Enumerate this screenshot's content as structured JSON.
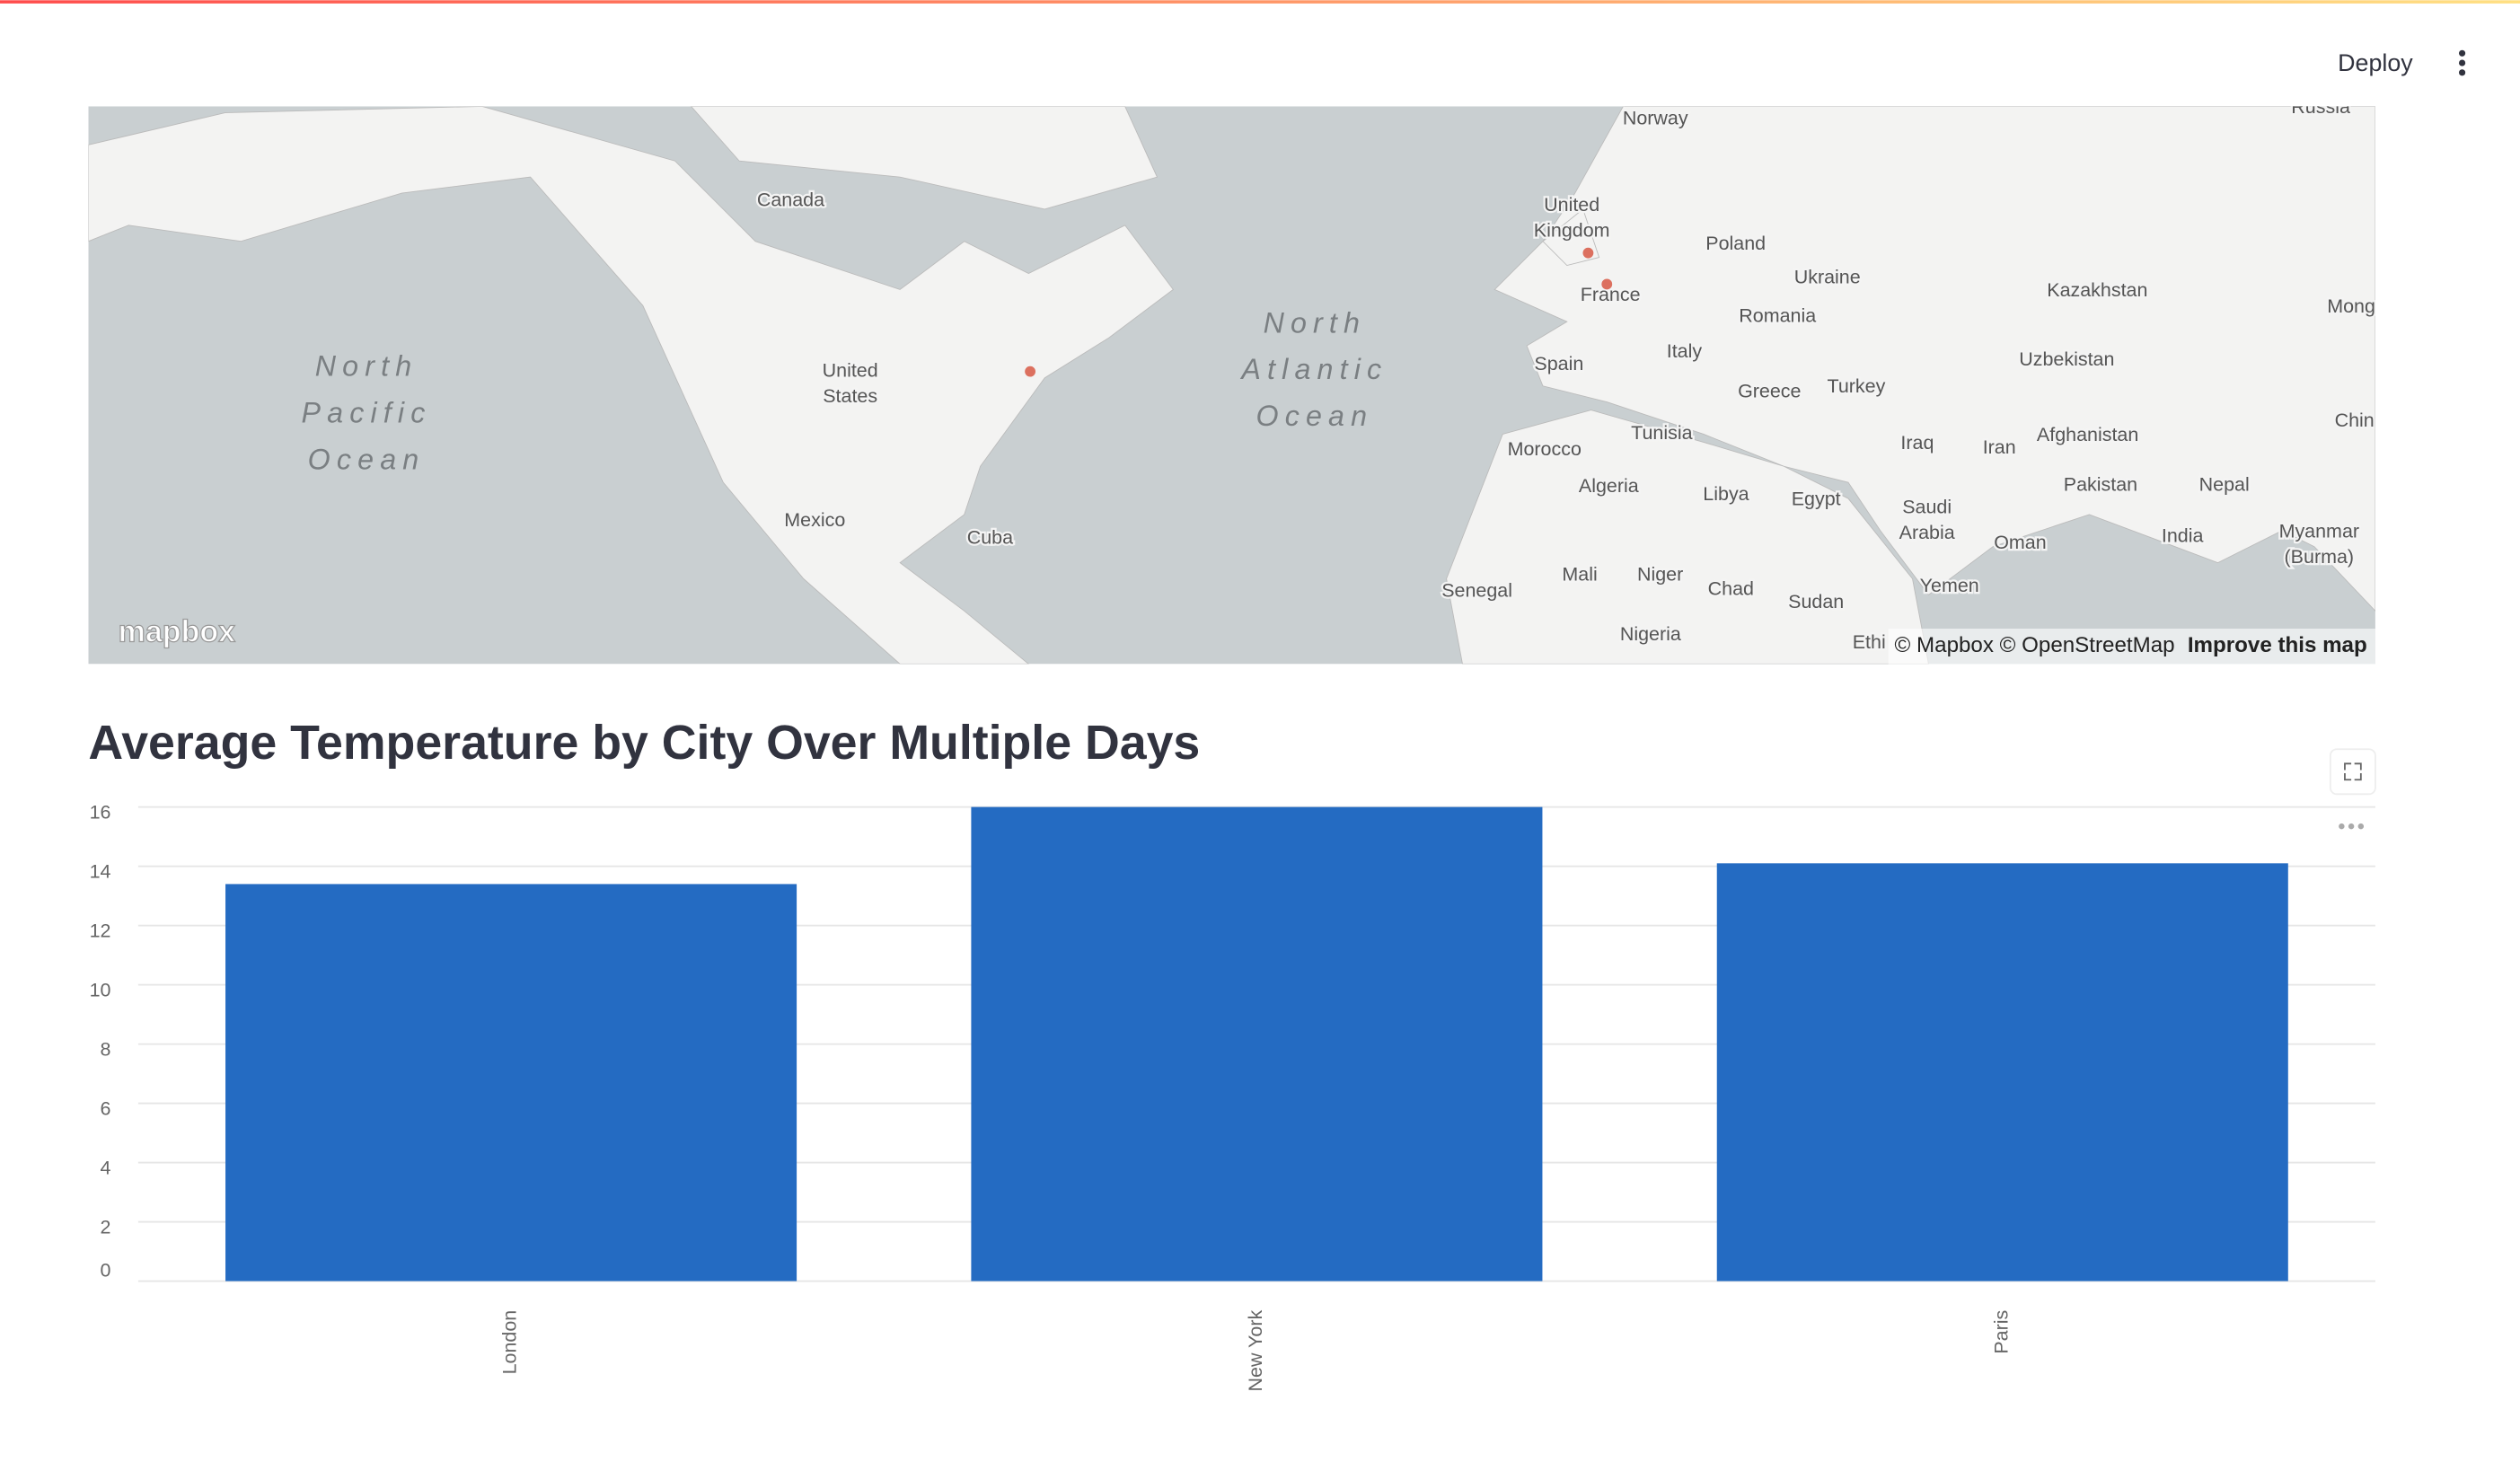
{
  "header": {
    "deploy": "Deploy"
  },
  "map": {
    "labels": [
      [
        "Norway"
      ],
      [
        "Russia"
      ],
      [
        "Canada"
      ],
      [
        "United",
        "Kingdom"
      ],
      [
        "Poland"
      ],
      [
        "Ukraine"
      ],
      [
        "France"
      ],
      [
        "Kazakhstan"
      ],
      [
        "Mong"
      ],
      [
        "Romania"
      ],
      [
        "North",
        "Pacific",
        "Ocean"
      ],
      [
        "North",
        "Atlantic",
        "Ocean"
      ],
      [
        "United",
        "States"
      ],
      [
        "Spain"
      ],
      [
        "Italy"
      ],
      [
        "Uzbekistan"
      ],
      [
        "Turkey"
      ],
      [
        "Greece"
      ],
      [
        "Chin"
      ],
      [
        "Tunisia"
      ],
      [
        "Iraq"
      ],
      [
        "Iran"
      ],
      [
        "Afghanistan"
      ],
      [
        "Morocco"
      ],
      [
        "Algeria"
      ],
      [
        "Libya"
      ],
      [
        "Egypt"
      ],
      [
        "Pakistan"
      ],
      [
        "Nepal"
      ],
      [
        "Mexico"
      ],
      [
        "Saudi",
        "Arabia"
      ],
      [
        "India"
      ],
      [
        "Oman"
      ],
      [
        "Myanmar",
        "(Burma)"
      ],
      [
        "Cuba"
      ],
      [
        "Mali"
      ],
      [
        "Niger"
      ],
      [
        "Chad"
      ],
      [
        "Senegal"
      ],
      [
        "Sudan"
      ],
      [
        "Yemen"
      ],
      [
        "Nigeria"
      ],
      [
        "Ethi"
      ]
    ],
    "points": [
      {
        "lat": 51.5,
        "lon": -0.13
      },
      {
        "lat": 48.86,
        "lon": 2.35
      },
      {
        "lat": 40.7,
        "lon": -74.0
      }
    ],
    "logo": "mapbox",
    "attribution": "© Mapbox © OpenStreetMap",
    "improve": "Improve this map"
  },
  "chart_data": {
    "type": "bar",
    "title": "Average Temperature by City Over Multiple Days",
    "categories": [
      "London",
      "New York",
      "Paris"
    ],
    "values": [
      13.4,
      16.0,
      14.1
    ],
    "color": "#246bc2",
    "ylim": [
      0,
      16
    ],
    "yticks": [
      0,
      2,
      4,
      6,
      8,
      10,
      12,
      14,
      16
    ],
    "grid": true
  }
}
